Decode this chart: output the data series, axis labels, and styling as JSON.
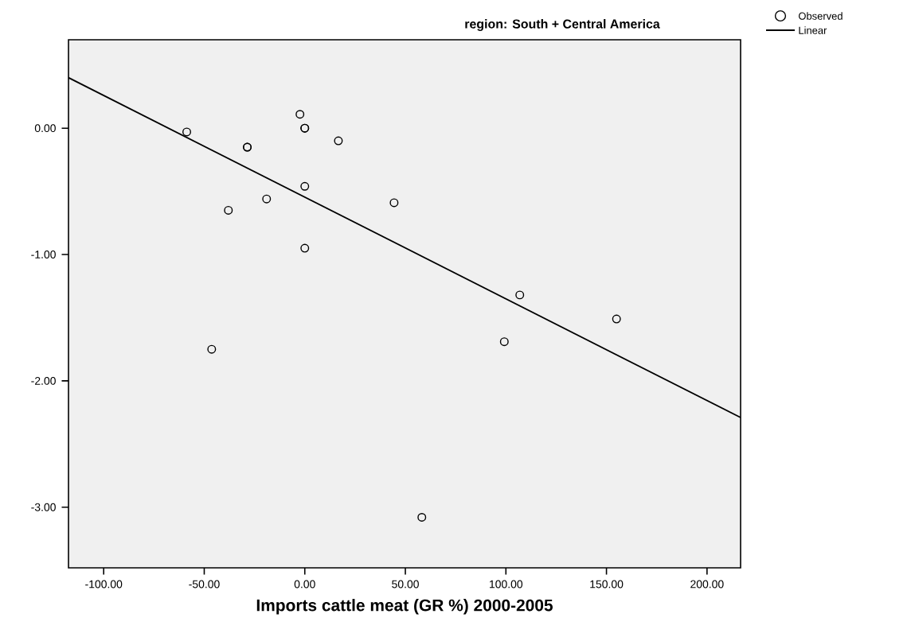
{
  "chart_data": {
    "type": "scatter",
    "title": "region: South + Central America",
    "xlabel": "Imports cattle meat (GR %) 2000-2005",
    "xlim": [
      -117.5,
      216.7
    ],
    "ylim": [
      -3.48,
      0.7
    ],
    "xticks": [
      {
        "value": -100,
        "label": "-100.00"
      },
      {
        "value": -50,
        "label": "-50.00"
      },
      {
        "value": 0,
        "label": "0.00"
      },
      {
        "value": 50,
        "label": "50.00"
      },
      {
        "value": 100,
        "label": "100.00"
      },
      {
        "value": 150,
        "label": "150.00"
      },
      {
        "value": 200,
        "label": "200.00"
      }
    ],
    "yticks": [
      {
        "value": 0,
        "label": "0.00"
      },
      {
        "value": -1,
        "label": "-1.00"
      },
      {
        "value": -2,
        "label": "-2.00"
      },
      {
        "value": -3,
        "label": "-3.00"
      }
    ],
    "legend": "top right",
    "grid": false,
    "series": [
      {
        "name": "Observed",
        "marker": "circle",
        "color": "#000000",
        "x": [
          -58.7,
          -28.6,
          -28.6,
          -2.4,
          0,
          0,
          16.7,
          0,
          -19,
          -38,
          0,
          44.4,
          106.9,
          99.2,
          155,
          -46.3,
          58.2
        ],
        "values": [
          -0.03,
          -0.15,
          -0.15,
          0.11,
          0,
          0,
          -0.1,
          -0.46,
          -0.56,
          -0.65,
          -0.95,
          -0.59,
          -1.32,
          -1.69,
          -1.51,
          -1.75,
          -3.08
        ]
      },
      {
        "name": "Linear",
        "type": "line",
        "marker": "none",
        "color": "#000000",
        "x": [
          -117.5,
          216.7
        ],
        "values": [
          0.4,
          -2.29
        ]
      }
    ]
  }
}
